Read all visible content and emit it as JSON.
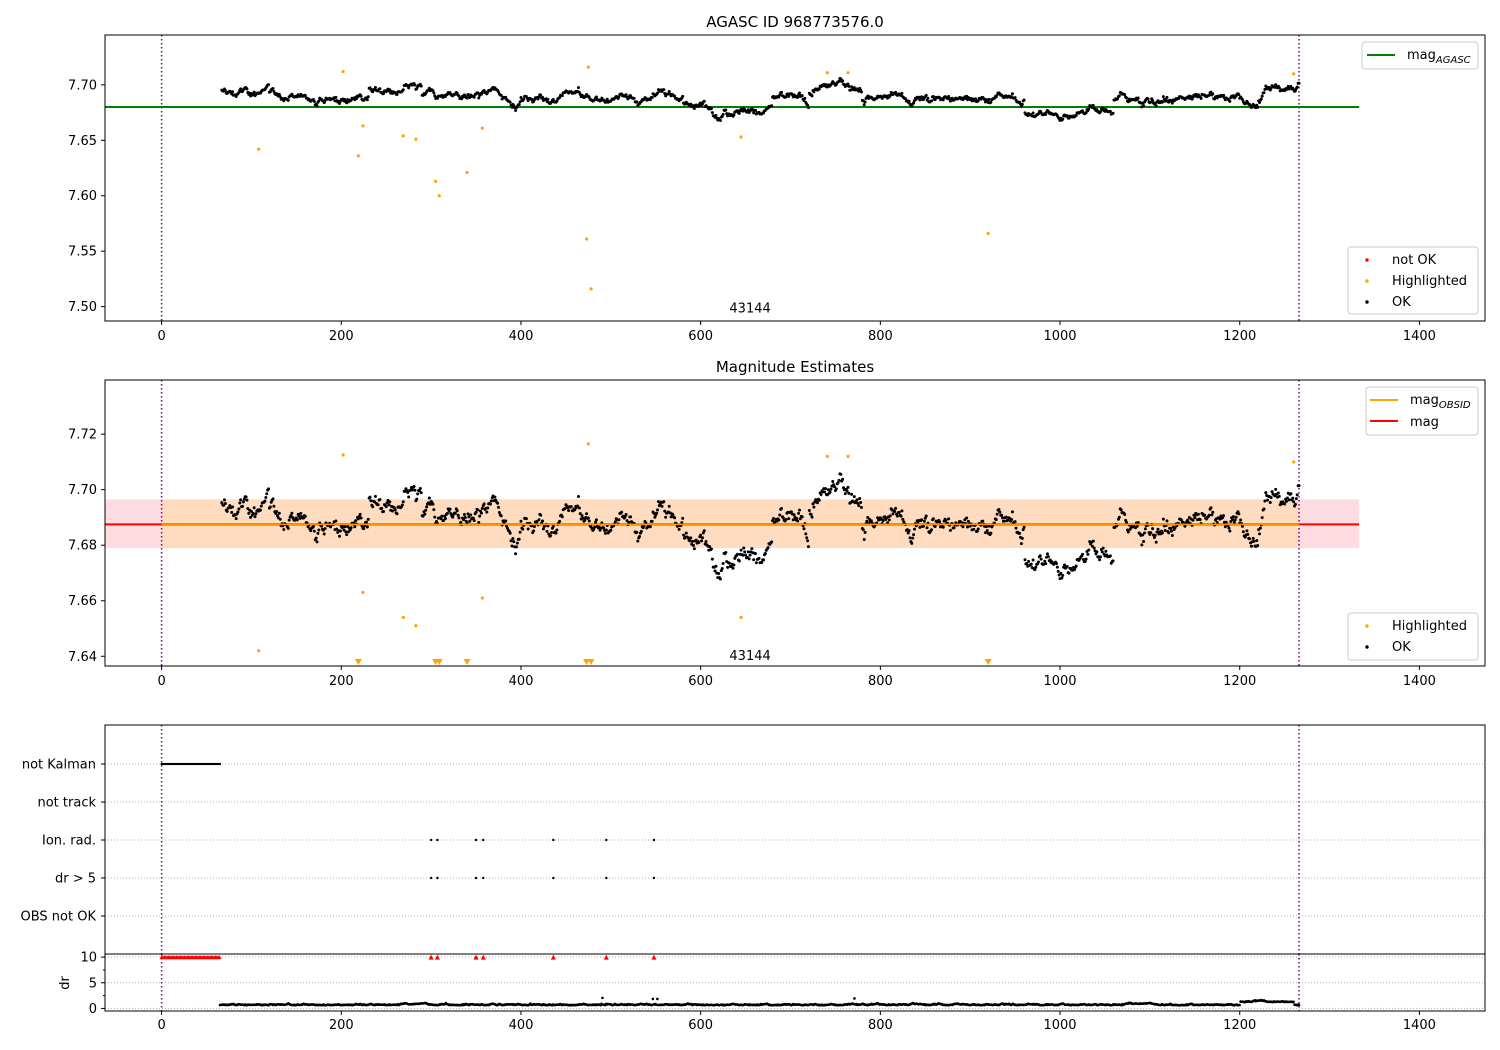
{
  "chart_data": [
    {
      "type": "scatter",
      "title": "AGASC ID 968773576.0",
      "xlim": [
        -63,
        1473
      ],
      "ylim": [
        7.487,
        7.745
      ],
      "x_ticks": [
        0,
        200,
        400,
        600,
        800,
        1000,
        1200,
        1400
      ],
      "y_ticks": [
        7.5,
        7.55,
        7.6,
        7.65,
        7.7
      ],
      "y_tick_labels": [
        "7.50",
        "7.55",
        "7.60",
        "7.65",
        "7.70"
      ],
      "annotation": {
        "text": "43144",
        "x": 632,
        "y": 7.499
      },
      "vlines": [
        0,
        1266
      ],
      "hlines": [
        {
          "y": 7.68,
          "x_range": [
            -63,
            1333
          ],
          "color": "#008000",
          "name": "mag_AGASC"
        }
      ],
      "legend_lines": [
        {
          "label": "mag",
          "sub": "AGASC",
          "color": "#008000"
        }
      ],
      "legend_points": [
        {
          "label": "not OK",
          "color": "#ff0000"
        },
        {
          "label": "Highlighted",
          "color": "#ffa500"
        },
        {
          "label": "OK",
          "color": "#000000"
        }
      ],
      "ok_points": {
        "x_range": [
          67,
          1266
        ],
        "count": 1200,
        "color": "#000000"
      },
      "highlighted_points": {
        "color": "#ffa500",
        "x": [
          108,
          202,
          219,
          224,
          269,
          283,
          305,
          309,
          340,
          357,
          473,
          475,
          478,
          645,
          741,
          764,
          920,
          1260
        ],
        "y": [
          7.642,
          7.712,
          7.636,
          7.663,
          7.654,
          7.651,
          7.613,
          7.6,
          7.621,
          7.661,
          7.561,
          7.716,
          7.516,
          7.653,
          7.711,
          7.711,
          7.566,
          7.71
        ]
      }
    },
    {
      "type": "scatter",
      "title": "Magnitude Estimates",
      "xlim": [
        -63,
        1473
      ],
      "ylim": [
        7.6365,
        7.7395
      ],
      "x_ticks": [
        0,
        200,
        400,
        600,
        800,
        1000,
        1200,
        1400
      ],
      "y_ticks": [
        7.64,
        7.66,
        7.68,
        7.7,
        7.72
      ],
      "y_tick_labels": [
        "7.64",
        "7.66",
        "7.68",
        "7.70",
        "7.72"
      ],
      "annotation": {
        "text": "43144",
        "x": 632,
        "y": 7.6405
      },
      "vlines": [
        0,
        1266
      ],
      "hlines": [
        {
          "y": 7.6875,
          "x_range": [
            -63,
            1333
          ],
          "color": "#ff0000",
          "name": "mag"
        }
      ],
      "band": {
        "y_low": 7.679,
        "y_high": 7.6965,
        "x_range": [
          -63,
          1333
        ],
        "color": "#ffc0cb"
      },
      "band_inner": {
        "y_low": 7.679,
        "y_high": 7.6965,
        "x_range": [
          0,
          1266
        ],
        "color": "#ffdab9"
      },
      "legend_lines": [
        {
          "label": "mag",
          "sub": "OBSID",
          "color": "#ffa500"
        },
        {
          "label": "mag",
          "sub": "",
          "color": "#ff0000"
        }
      ],
      "legend_points": [
        {
          "label": "Highlighted",
          "color": "#ffa500"
        },
        {
          "label": "OK",
          "color": "#000000"
        }
      ],
      "ok_points": {
        "x_range": [
          67,
          1266
        ],
        "count": 1200,
        "color": "#000000"
      },
      "highlighted_points": {
        "color": "#ffa500",
        "x": [
          108,
          202,
          224,
          269,
          283,
          357,
          475,
          645,
          741,
          764,
          1260
        ],
        "y": [
          7.642,
          7.7125,
          7.663,
          7.654,
          7.651,
          7.661,
          7.7165,
          7.654,
          7.712,
          7.712,
          7.71
        ]
      },
      "clipped_markers": {
        "color": "#ffa500",
        "x": [
          219,
          305,
          309,
          340,
          473,
          478,
          920
        ]
      }
    },
    {
      "type": "scatter",
      "title": "",
      "xlim": [
        -63,
        1473
      ],
      "x_ticks": [
        0,
        200,
        400,
        600,
        800,
        1000,
        1200,
        1400
      ],
      "vlines": [
        0,
        1266
      ],
      "flags": {
        "labels": [
          "not Kalman",
          "not track",
          "Ion. rad.",
          "dr > 5",
          "OBS not OK"
        ],
        "not_kalman_x_range": [
          0,
          65
        ],
        "ion_rad_x": [
          300,
          307,
          350,
          358,
          436,
          495,
          548
        ],
        "dr_gt5_x": [
          300,
          307,
          350,
          358,
          436,
          495,
          548
        ]
      }
    },
    {
      "type": "scatter",
      "title": "",
      "ylabel": "dr",
      "xlim": [
        -63,
        1473
      ],
      "ylim": [
        -0.5,
        10.6
      ],
      "x_ticks": [
        0,
        200,
        400,
        600,
        800,
        1000,
        1200,
        1400
      ],
      "x_tick_labels": [
        "0",
        "200",
        "400",
        "600",
        "800",
        "1000",
        "1200",
        "1400"
      ],
      "y_ticks": [
        0,
        5,
        10
      ],
      "y_tick_labels": [
        "0",
        "5",
        "10"
      ],
      "vlines": [
        0,
        1266
      ],
      "ok_points": {
        "x_range": [
          65,
          1266
        ],
        "count": 1200,
        "color": "#000000"
      },
      "capped_markers": {
        "color": "#ff0000",
        "y": 10,
        "x_range": [
          0,
          65
        ],
        "extra_x": [
          300,
          307,
          350,
          358,
          436,
          495,
          548
        ]
      }
    }
  ]
}
